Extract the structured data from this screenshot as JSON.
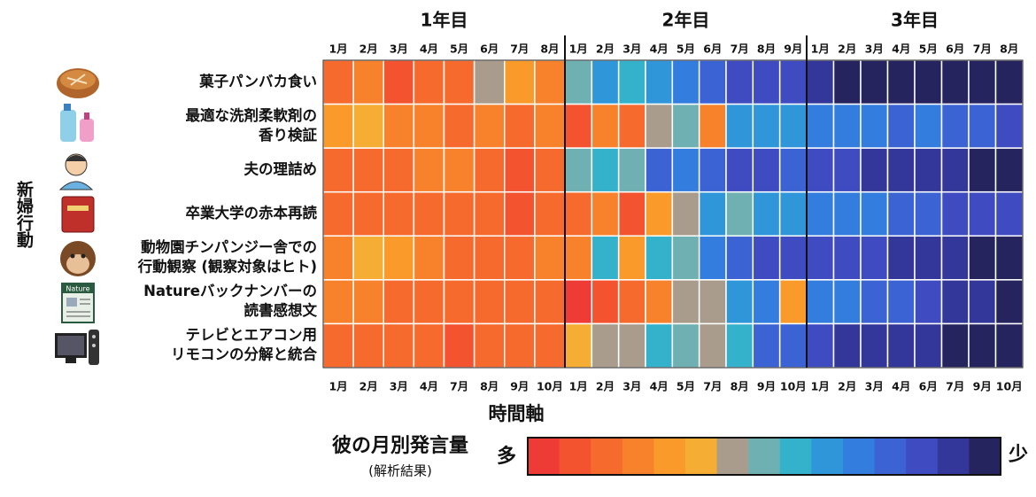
{
  "chart_data": {
    "type": "heatmap",
    "ylabel": "新婦行動",
    "xlabel": "時間軸",
    "groups": [
      {
        "name": "1年目",
        "top_categories": [
          "1月",
          "2月",
          "3月",
          "4月",
          "5月",
          "6月",
          "7月",
          "8月"
        ],
        "bottom_categories": [
          "1月",
          "2月",
          "3月",
          "4月",
          "7月",
          "8月",
          "9月",
          "10月"
        ]
      },
      {
        "name": "2年目",
        "top_categories": [
          "1月",
          "2月",
          "3月",
          "4月",
          "5月",
          "6月",
          "7月",
          "8月",
          "9月"
        ],
        "bottom_categories": [
          "1月",
          "2月",
          "3月",
          "4月",
          "5月",
          "7月",
          "8月",
          "9月",
          "10月"
        ]
      },
      {
        "name": "3年目",
        "top_categories": [
          "1月",
          "2月",
          "3月",
          "4月",
          "5月",
          "6月",
          "7月",
          "8月"
        ],
        "bottom_categories": [
          "1月",
          "2月",
          "3月",
          "4月",
          "6月",
          "7月",
          "9月",
          "10月"
        ]
      }
    ],
    "rows": [
      {
        "label": [
          "菓子パンバカ食い"
        ],
        "values": [
          13,
          12,
          14,
          13,
          13,
          9,
          11,
          12,
          8,
          6,
          7,
          6,
          5,
          4,
          3,
          3,
          3,
          2,
          1,
          1,
          1,
          1,
          1,
          1,
          1
        ]
      },
      {
        "label": [
          "最適な洗剤柔軟剤の",
          "香り検証"
        ],
        "values": [
          11,
          10,
          12,
          12,
          13,
          12,
          13,
          12,
          14,
          12,
          13,
          9,
          8,
          12,
          6,
          6,
          6,
          5,
          5,
          5,
          4,
          5,
          4,
          4,
          3
        ]
      },
      {
        "label": [
          "夫の理詰め"
        ],
        "values": [
          13,
          13,
          13,
          12,
          12,
          13,
          14,
          13,
          8,
          7,
          8,
          4,
          5,
          4,
          3,
          3,
          4,
          3,
          3,
          2,
          2,
          2,
          2,
          1,
          1
        ]
      },
      {
        "label": [
          "卒業大学の赤本再読"
        ],
        "values": [
          13,
          13,
          13,
          13,
          13,
          13,
          14,
          13,
          13,
          12,
          14,
          11,
          9,
          6,
          8,
          6,
          6,
          5,
          5,
          5,
          4,
          4,
          3,
          3,
          3
        ]
      },
      {
        "label": [
          "動物園チンパンジー舎での",
          "行動観察 (観察対象はヒト)"
        ],
        "values": [
          12,
          10,
          11,
          12,
          13,
          13,
          13,
          12,
          12,
          7,
          11,
          7,
          8,
          5,
          4,
          3,
          3,
          3,
          3,
          3,
          2,
          2,
          2,
          1,
          1
        ]
      },
      {
        "label": [
          "Natureバックナンバーの",
          "読書感想文"
        ],
        "values": [
          12,
          12,
          13,
          13,
          13,
          13,
          13,
          13,
          15,
          14,
          13,
          12,
          9,
          9,
          6,
          5,
          11,
          5,
          5,
          4,
          4,
          3,
          2,
          2,
          1
        ]
      },
      {
        "label": [
          "テレビとエアコン用",
          "リモコンの分解と統合"
        ],
        "values": [
          13,
          13,
          13,
          13,
          14,
          13,
          13,
          13,
          10,
          9,
          9,
          7,
          8,
          9,
          7,
          4,
          4,
          3,
          2,
          2,
          2,
          2,
          1,
          1,
          1
        ]
      }
    ],
    "vlim": [
      1,
      15
    ],
    "colorbar": {
      "title": "彼の月別発言量",
      "subtitle": "(解析結果)",
      "high_label": "多",
      "low_label": "少",
      "colors": [
        "#ef3b36",
        "#f4532f",
        "#f66a2d",
        "#f8822b",
        "#f99a2a",
        "#f5ae33",
        "#a99c8c",
        "#6fb1b3",
        "#34b1cb",
        "#2f96da",
        "#337ddf",
        "#3c63d3",
        "#3f4bc0",
        "#33379a",
        "#25245f"
      ]
    }
  },
  "icon_text": "Nature"
}
